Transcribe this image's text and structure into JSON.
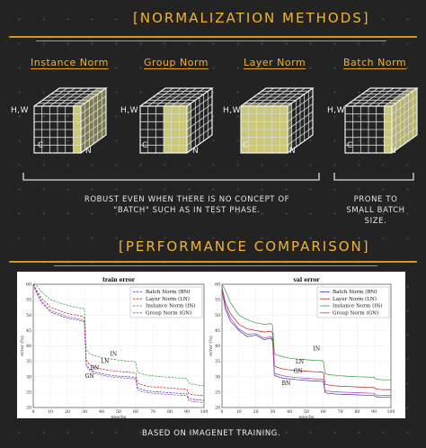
{
  "header": {
    "title": "[Normalization Methods]",
    "methods": [
      "Instance Norm",
      "Group Norm",
      "Layer Norm",
      "Batch Norm"
    ]
  },
  "cube_labels": {
    "hw": "H,W",
    "c": "C",
    "n": "N"
  },
  "notes": {
    "left": "Robust even when there is no concept of \"batch\" such as in test phase.",
    "right": "Prone to small batch size."
  },
  "section2": {
    "title": "[Performance Comparison]",
    "caption": "Based on Imagenet training."
  },
  "colors": {
    "accent": "#f2b233",
    "BN": "#3a3ab0",
    "LN": "#b22222",
    "IN": "#3c9a3c",
    "GN": "#b03ab0",
    "cube_highlight": "#e9e58a"
  },
  "chart_data": [
    {
      "type": "line",
      "title": "train error",
      "xlabel": "epochs",
      "ylabel": "error (%)",
      "xlim": [
        0,
        100
      ],
      "ylim": [
        20,
        60
      ],
      "x_ticks": [
        0,
        10,
        20,
        30,
        40,
        50,
        60,
        70,
        80,
        90,
        100
      ],
      "y_ticks": [
        20,
        25,
        30,
        35,
        40,
        45,
        50,
        55,
        60
      ],
      "legend_position": "top-right",
      "x": [
        0,
        2,
        5,
        10,
        15,
        20,
        25,
        29,
        30,
        31,
        33,
        36,
        40,
        45,
        50,
        55,
        59,
        60,
        61,
        63,
        66,
        70,
        75,
        80,
        85,
        89,
        90,
        91,
        93,
        96,
        100
      ],
      "series": [
        {
          "name": "Batch Norm (BN)",
          "key": "BN",
          "style": "dashed",
          "values": [
            60,
            57,
            54,
            51,
            50,
            49,
            48.5,
            48,
            47.5,
            34,
            32.5,
            31.5,
            31,
            30.5,
            30.2,
            30,
            29.8,
            29.6,
            26.5,
            26,
            25.5,
            25.2,
            25,
            24.8,
            24.6,
            24.5,
            24.4,
            23,
            22.7,
            22.5,
            22.3
          ]
        },
        {
          "name": "Layer Norm (LN)",
          "key": "LN",
          "style": "dashed",
          "values": [
            60,
            58,
            55.5,
            52.5,
            51.5,
            50.5,
            50,
            49.5,
            49,
            35.5,
            34,
            33,
            32.5,
            32,
            31.7,
            31.5,
            31.3,
            31.1,
            28,
            27.5,
            27,
            26.7,
            26.5,
            26.3,
            26.1,
            26,
            25.9,
            24.5,
            24.2,
            24,
            23.8
          ]
        },
        {
          "name": "Instance Norm (IN)",
          "key": "IN",
          "style": "dashed",
          "values": [
            60,
            59.5,
            57.5,
            55,
            54,
            53.2,
            52.5,
            52.2,
            52,
            39,
            37.5,
            36.8,
            36.2,
            35.8,
            35.4,
            35.1,
            34.9,
            34.7,
            31.5,
            31,
            30.6,
            30.3,
            30,
            29.8,
            29.6,
            29.5,
            29.4,
            28,
            27.6,
            27.3,
            27
          ]
        },
        {
          "name": "Group Norm (GN)",
          "key": "GN",
          "style": "dashed",
          "values": [
            60,
            57.5,
            54.5,
            51.5,
            50.5,
            49.5,
            49,
            48.5,
            48,
            33.5,
            32,
            31,
            30.5,
            30,
            29.7,
            29.5,
            29.3,
            29.1,
            25.8,
            25.3,
            24.9,
            24.6,
            24.4,
            24.2,
            24,
            23.9,
            23.8,
            22.3,
            22,
            21.8,
            21.6
          ]
        }
      ],
      "annotations": [
        {
          "text": "IN",
          "x": 47,
          "y": 36.8
        },
        {
          "text": "LN",
          "x": 42,
          "y": 34.5
        },
        {
          "text": "BN",
          "x": 36,
          "y": 32.3
        },
        {
          "text": "GN",
          "x": 33,
          "y": 29.6
        }
      ]
    },
    {
      "type": "line",
      "title": "val error",
      "xlabel": "epochs",
      "ylabel": "error (%)",
      "xlim": [
        0,
        100
      ],
      "ylim": [
        20,
        60
      ],
      "x_ticks": [
        0,
        10,
        20,
        30,
        40,
        50,
        60,
        70,
        80,
        90,
        100
      ],
      "y_ticks": [
        20,
        25,
        30,
        35,
        40,
        45,
        50,
        55,
        60
      ],
      "legend_position": "top-right",
      "x": [
        0,
        2,
        5,
        10,
        15,
        20,
        25,
        29,
        30,
        31,
        33,
        36,
        40,
        45,
        50,
        55,
        59,
        60,
        61,
        63,
        66,
        70,
        75,
        80,
        85,
        89,
        90,
        91,
        93,
        96,
        100
      ],
      "series": [
        {
          "name": "Batch Norm (BN)",
          "key": "BN",
          "style": "solid",
          "values": [
            58,
            52,
            48,
            45,
            43,
            43.5,
            42,
            42.5,
            41.5,
            30.5,
            30,
            29.5,
            29.3,
            29,
            28.8,
            28.6,
            28.5,
            28.4,
            24.8,
            24.6,
            24.4,
            24.3,
            24.2,
            24.1,
            24,
            24,
            23.9,
            23.5,
            23.4,
            23.3,
            23.3
          ]
        },
        {
          "name": "Layer Norm (LN)",
          "key": "LN",
          "style": "solid",
          "values": [
            59,
            54,
            50.5,
            47,
            45.5,
            45,
            44.5,
            44.8,
            44,
            33.5,
            33,
            32.5,
            32.2,
            32,
            31.8,
            31.6,
            31.5,
            31.4,
            27.5,
            27.3,
            27.1,
            26.9,
            26.8,
            26.7,
            26.6,
            26.5,
            26.5,
            26,
            25.9,
            25.8,
            25.8
          ]
        },
        {
          "name": "Instance Norm (IN)",
          "key": "IN",
          "style": "solid",
          "values": [
            60,
            58,
            54,
            50,
            48.5,
            47.5,
            47,
            47.2,
            46.5,
            37.5,
            37,
            36.5,
            36,
            35.7,
            35.5,
            35.3,
            35.2,
            35.1,
            31,
            30.7,
            30.5,
            30.3,
            30.1,
            30,
            29.9,
            29.8,
            29.8,
            29.2,
            29.1,
            29,
            29
          ]
        },
        {
          "name": "Group Norm (GN)",
          "key": "GN",
          "style": "solid",
          "values": [
            58,
            53,
            49,
            45.5,
            43.8,
            44,
            42.5,
            43,
            42,
            31.2,
            30.8,
            30.3,
            30,
            29.7,
            29.5,
            29.3,
            29.2,
            29.1,
            25.5,
            25.3,
            25.1,
            25,
            24.9,
            24.8,
            24.7,
            24.6,
            24.6,
            24.1,
            24,
            23.9,
            23.9
          ]
        }
      ],
      "annotations": [
        {
          "text": "IN",
          "x": 56,
          "y": 38.5
        },
        {
          "text": "LN",
          "x": 46,
          "y": 34.3
        },
        {
          "text": "GN",
          "x": 45,
          "y": 31.2
        },
        {
          "text": "BN",
          "x": 38,
          "y": 27.3
        }
      ]
    }
  ]
}
